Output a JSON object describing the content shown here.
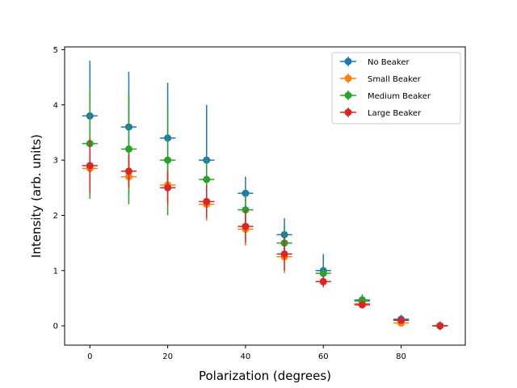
{
  "chart_data": {
    "type": "scatter",
    "title": "",
    "xlabel": "Polarization (degrees)",
    "ylabel": "Intensity (arb. units)",
    "xlim": [
      -6.5,
      96.5
    ],
    "ylim": [
      -0.35,
      5.05
    ],
    "xticks": [
      0,
      20,
      40,
      60,
      80
    ],
    "yticks": [
      0,
      1,
      2,
      3,
      4,
      5
    ],
    "grid": false,
    "legend_position": "top-right",
    "x_error": 2.0,
    "x": [
      0,
      10,
      20,
      30,
      40,
      50,
      60,
      70,
      80,
      90
    ],
    "series": [
      {
        "name": "No Beaker",
        "color": "#1f77b4",
        "values": [
          3.8,
          3.6,
          3.4,
          3.0,
          2.4,
          1.65,
          1.0,
          0.45,
          0.12,
          0.0
        ],
        "errors": [
          1.0,
          1.0,
          1.0,
          1.0,
          0.3,
          0.3,
          0.3,
          0.1,
          0.08,
          0.05
        ]
      },
      {
        "name": "Small Beaker",
        "color": "#ff7f0e",
        "values": [
          2.85,
          2.7,
          2.55,
          2.2,
          1.75,
          1.25,
          0.8,
          0.4,
          0.05,
          0.0
        ],
        "errors": [
          0.3,
          0.3,
          0.3,
          0.3,
          0.3,
          0.3,
          0.1,
          0.05,
          0.05,
          0.05
        ]
      },
      {
        "name": "Medium Beaker",
        "color": "#2ca02c",
        "values": [
          3.3,
          3.2,
          3.0,
          2.65,
          2.1,
          1.5,
          0.95,
          0.47,
          0.1,
          0.0
        ],
        "errors": [
          1.0,
          1.0,
          1.0,
          0.4,
          0.3,
          0.3,
          0.1,
          0.1,
          0.05,
          0.05
        ]
      },
      {
        "name": "Large Beaker",
        "color": "#d62728",
        "values": [
          2.9,
          2.8,
          2.5,
          2.25,
          1.8,
          1.3,
          0.8,
          0.38,
          0.1,
          0.0
        ],
        "errors": [
          0.5,
          0.3,
          0.3,
          0.3,
          0.3,
          0.3,
          0.1,
          0.05,
          0.05,
          0.08
        ]
      }
    ]
  }
}
